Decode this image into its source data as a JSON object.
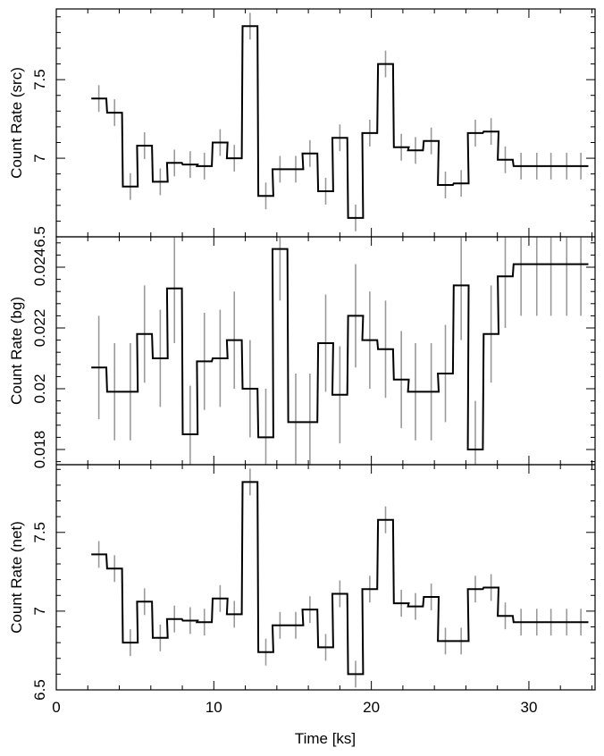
{
  "chart_data": {
    "type": "line",
    "xlabel": "Time [ks]",
    "xlim": [
      0,
      34.2
    ],
    "x_ticks": [
      "0",
      "10",
      "20",
      "30"
    ],
    "x_tick_values": [
      0,
      10,
      20,
      30
    ],
    "bin_width": 0.95,
    "x": [
      2.7,
      3.7,
      4.7,
      5.6,
      6.6,
      7.5,
      8.5,
      9.4,
      10.4,
      11.3,
      12.3,
      13.3,
      14.2,
      15.2,
      16.1,
      17.1,
      18.0,
      19.0,
      19.9,
      20.9,
      21.9,
      22.8,
      23.8,
      24.7,
      25.7,
      26.6,
      27.6,
      28.5,
      29.5,
      30.5,
      31.4,
      32.4,
      33.3
    ],
    "panels": [
      {
        "ylabel": "Count Rate (src)",
        "ylim": [
          6.5,
          7.95
        ],
        "y_tick_values": [
          6.5,
          7,
          7.5
        ],
        "y_ticks": [
          "6.5",
          "7",
          "7.5"
        ],
        "values": [
          7.38,
          7.29,
          6.82,
          7.08,
          6.85,
          6.97,
          6.96,
          6.95,
          7.1,
          7.0,
          7.84,
          6.76,
          6.93,
          6.93,
          7.03,
          6.79,
          7.13,
          6.62,
          7.16,
          7.6,
          7.07,
          7.05,
          7.11,
          6.83,
          6.84,
          7.16,
          7.17,
          6.99,
          6.95,
          6.95,
          6.95,
          6.95,
          6.95
        ],
        "errors": [
          0.085,
          0.085,
          0.085,
          0.085,
          0.085,
          0.085,
          0.085,
          0.085,
          0.085,
          0.085,
          0.085,
          0.085,
          0.085,
          0.085,
          0.085,
          0.085,
          0.085,
          0.085,
          0.085,
          0.085,
          0.085,
          0.085,
          0.085,
          0.085,
          0.085,
          0.085,
          0.085,
          0.085,
          0.085,
          0.085,
          0.085,
          0.085,
          0.085
        ]
      },
      {
        "ylabel": "Count Rate (bg)",
        "ylim": [
          0.0175,
          0.025
        ],
        "y_tick_values": [
          0.018,
          0.02,
          0.022,
          0.024
        ],
        "y_ticks": [
          "0.018",
          "0.02",
          "0.022",
          "0.024"
        ],
        "values": [
          0.0207,
          0.0199,
          0.0199,
          0.0218,
          0.021,
          0.0233,
          0.0185,
          0.0209,
          0.021,
          0.0216,
          0.02,
          0.0184,
          0.0246,
          0.0189,
          0.0189,
          0.0215,
          0.0198,
          0.0224,
          0.0216,
          0.0213,
          0.0203,
          0.0199,
          0.0199,
          0.0205,
          0.0234,
          0.018,
          0.0218,
          0.0237,
          0.0241,
          0.0241,
          0.0241,
          0.0241,
          0.0241
        ],
        "errors": [
          0.0017,
          0.0016,
          0.0016,
          0.0016,
          0.0016,
          0.0018,
          0.0016,
          0.0016,
          0.0016,
          0.0016,
          0.0016,
          0.0016,
          0.0017,
          0.0016,
          0.0016,
          0.0016,
          0.0016,
          0.0017,
          0.0016,
          0.0016,
          0.0016,
          0.0016,
          0.0016,
          0.0016,
          0.0018,
          0.0016,
          0.0016,
          0.0017,
          0.0017,
          0.0017,
          0.0017,
          0.0017,
          0.0017
        ]
      },
      {
        "ylabel": "Count Rate (net)",
        "ylim": [
          6.5,
          7.93
        ],
        "y_tick_values": [
          6.5,
          7,
          7.5
        ],
        "y_ticks": [
          "6.5",
          "7",
          "7.5"
        ],
        "values": [
          7.36,
          7.27,
          6.8,
          7.06,
          6.83,
          6.95,
          6.94,
          6.93,
          7.08,
          6.98,
          7.82,
          6.74,
          6.91,
          6.91,
          7.01,
          6.77,
          7.11,
          6.6,
          7.14,
          7.58,
          7.05,
          7.03,
          7.09,
          6.81,
          6.81,
          7.14,
          7.15,
          6.97,
          6.93,
          6.93,
          6.93,
          6.93,
          6.93
        ],
        "errors": [
          0.085,
          0.085,
          0.085,
          0.085,
          0.085,
          0.085,
          0.085,
          0.085,
          0.085,
          0.085,
          0.085,
          0.085,
          0.085,
          0.085,
          0.085,
          0.085,
          0.085,
          0.085,
          0.085,
          0.085,
          0.085,
          0.085,
          0.085,
          0.085,
          0.085,
          0.085,
          0.085,
          0.085,
          0.085,
          0.085,
          0.085,
          0.085,
          0.085
        ]
      }
    ],
    "colors": {
      "step": "#000000",
      "error_bar": "#9a9a9a",
      "frame": "#000000"
    }
  }
}
